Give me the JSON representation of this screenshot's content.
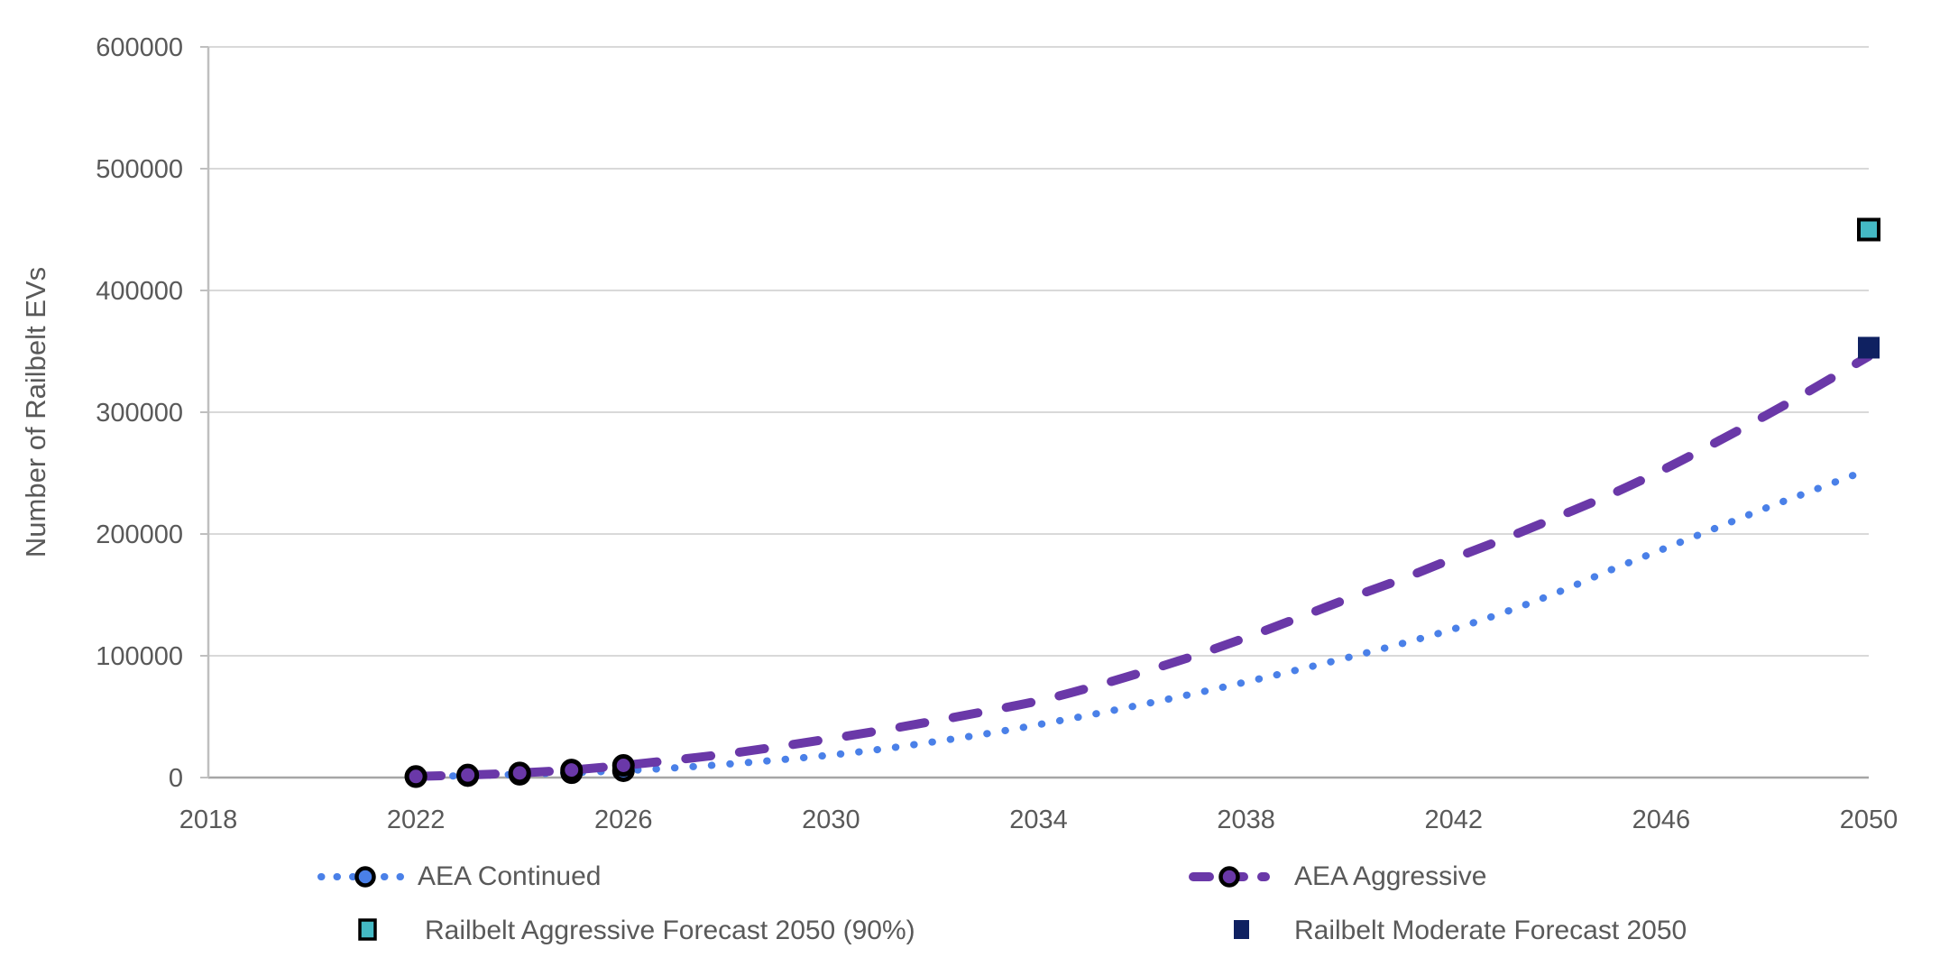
{
  "chart_data": {
    "type": "line",
    "title": "",
    "xlabel": "",
    "ylabel": "Number of Railbelt EVs",
    "xlim": [
      2018,
      2050
    ],
    "ylim": [
      0,
      600000
    ],
    "x_ticks": [
      2018,
      2022,
      2026,
      2030,
      2034,
      2038,
      2042,
      2046,
      2050
    ],
    "y_ticks": [
      0,
      100000,
      200000,
      300000,
      400000,
      500000,
      600000
    ],
    "grid": "horizontal",
    "legend_position": "bottom",
    "years": [
      2022,
      2023,
      2024,
      2025,
      2026,
      2027,
      2028,
      2029,
      2030,
      2031,
      2032,
      2033,
      2034,
      2035,
      2036,
      2037,
      2038,
      2039,
      2040,
      2041,
      2042,
      2043,
      2044,
      2045,
      2046,
      2047,
      2048,
      2049,
      2050
    ],
    "series": [
      {
        "name": "AEA Continued",
        "kind": "line",
        "line_style": "dotted",
        "color": "#4A80E8",
        "marker": "circle",
        "marker_outline": "#000000",
        "marker_years": [
          2022,
          2023,
          2024,
          2025,
          2026
        ],
        "values": [
          700,
          1600,
          2700,
          4000,
          5600,
          8000,
          11000,
          14500,
          18500,
          23500,
          29500,
          36000,
          43500,
          51500,
          60000,
          69000,
          78500,
          88500,
          99000,
          110000,
          122000,
          136000,
          152000,
          170000,
          187000,
          204000,
          221000,
          237000,
          253000
        ]
      },
      {
        "name": "AEA Aggressive",
        "kind": "line",
        "line_style": "dashed",
        "color": "#6A38A8",
        "marker": "circle",
        "marker_outline": "#000000",
        "marker_years": [
          2022,
          2023,
          2024,
          2025,
          2026
        ],
        "values": [
          900,
          2100,
          3800,
          6200,
          10000,
          14500,
          19500,
          25500,
          32000,
          39000,
          46500,
          54500,
          63000,
          74000,
          86500,
          100000,
          115000,
          131000,
          147500,
          163000,
          180000,
          196500,
          214000,
          232000,
          252000,
          274000,
          297000,
          321000,
          346000
        ]
      },
      {
        "name": "Railbelt Aggressive Forecast 2050 (90%)",
        "kind": "point",
        "marker": "square",
        "color": "#44B9C4",
        "marker_outline": "#000000",
        "x": 2050,
        "value": 450000
      },
      {
        "name": "Railbelt Moderate Forecast 2050",
        "kind": "point",
        "marker": "square",
        "color": "#0F2161",
        "marker_outline": "none",
        "x": 2050,
        "value": 353000
      }
    ],
    "axis_colors": {
      "grid": "#D9D9D9",
      "axis": "#BFBFBF",
      "baseline": "#A6A6A6",
      "tick_text": "#595959"
    }
  }
}
